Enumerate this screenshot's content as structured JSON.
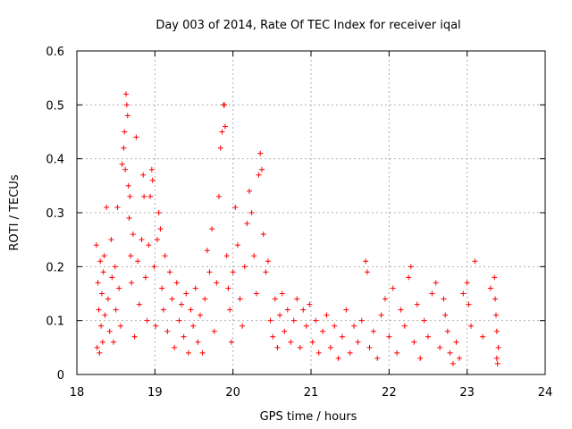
{
  "chart_data": {
    "type": "scatter",
    "title": "Day 003 of 2014, Rate Of TEC Index for receiver iqal",
    "xlabel": "GPS time / hours",
    "ylabel": "ROTI / TECUs",
    "xlim": [
      18,
      24
    ],
    "ylim": [
      0,
      0.6
    ],
    "x_ticks": [
      18,
      19,
      20,
      21,
      22,
      23,
      24
    ],
    "x_tick_labels": [
      "18",
      "19",
      "20",
      "21",
      "22",
      "23",
      "24"
    ],
    "y_ticks": [
      0,
      0.1,
      0.2,
      0.3,
      0.4,
      0.5,
      0.6
    ],
    "y_tick_labels": [
      "0",
      "0.1",
      "0.2",
      "0.3",
      "0.4",
      "0.5",
      "0.6"
    ],
    "grid": true,
    "marker": "plus",
    "color": "#ff0000",
    "series": [
      {
        "name": "ROTI",
        "points": [
          [
            18.25,
            0.24
          ],
          [
            18.26,
            0.05
          ],
          [
            18.27,
            0.17
          ],
          [
            18.28,
            0.12
          ],
          [
            18.29,
            0.04
          ],
          [
            18.3,
            0.21
          ],
          [
            18.31,
            0.09
          ],
          [
            18.32,
            0.15
          ],
          [
            18.33,
            0.06
          ],
          [
            18.34,
            0.19
          ],
          [
            18.35,
            0.22
          ],
          [
            18.36,
            0.11
          ],
          [
            18.38,
            0.31
          ],
          [
            18.4,
            0.14
          ],
          [
            18.42,
            0.08
          ],
          [
            18.44,
            0.25
          ],
          [
            18.45,
            0.18
          ],
          [
            18.47,
            0.06
          ],
          [
            18.49,
            0.2
          ],
          [
            18.5,
            0.12
          ],
          [
            18.52,
            0.31
          ],
          [
            18.54,
            0.16
          ],
          [
            18.56,
            0.09
          ],
          [
            18.58,
            0.39
          ],
          [
            18.6,
            0.42
          ],
          [
            18.61,
            0.45
          ],
          [
            18.62,
            0.38
          ],
          [
            18.63,
            0.52
          ],
          [
            18.64,
            0.5
          ],
          [
            18.65,
            0.48
          ],
          [
            18.66,
            0.35
          ],
          [
            18.67,
            0.29
          ],
          [
            18.68,
            0.33
          ],
          [
            18.69,
            0.22
          ],
          [
            18.7,
            0.17
          ],
          [
            18.72,
            0.26
          ],
          [
            18.74,
            0.07
          ],
          [
            18.76,
            0.44
          ],
          [
            18.78,
            0.21
          ],
          [
            18.8,
            0.13
          ],
          [
            18.83,
            0.25
          ],
          [
            18.85,
            0.37
          ],
          [
            18.86,
            0.33
          ],
          [
            18.88,
            0.18
          ],
          [
            18.9,
            0.1
          ],
          [
            18.92,
            0.24
          ],
          [
            18.94,
            0.33
          ],
          [
            18.96,
            0.38
          ],
          [
            18.97,
            0.36
          ],
          [
            18.99,
            0.2
          ],
          [
            19.01,
            0.09
          ],
          [
            19.03,
            0.25
          ],
          [
            19.05,
            0.3
          ],
          [
            19.07,
            0.27
          ],
          [
            19.09,
            0.16
          ],
          [
            19.11,
            0.12
          ],
          [
            19.13,
            0.22
          ],
          [
            19.16,
            0.08
          ],
          [
            19.19,
            0.19
          ],
          [
            19.22,
            0.14
          ],
          [
            19.25,
            0.05
          ],
          [
            19.28,
            0.17
          ],
          [
            19.31,
            0.1
          ],
          [
            19.34,
            0.13
          ],
          [
            19.37,
            0.07
          ],
          [
            19.4,
            0.15
          ],
          [
            19.43,
            0.04
          ],
          [
            19.46,
            0.12
          ],
          [
            19.49,
            0.09
          ],
          [
            19.52,
            0.16
          ],
          [
            19.55,
            0.06
          ],
          [
            19.58,
            0.11
          ],
          [
            19.61,
            0.04
          ],
          [
            19.64,
            0.14
          ],
          [
            19.67,
            0.23
          ],
          [
            19.7,
            0.19
          ],
          [
            19.73,
            0.27
          ],
          [
            19.76,
            0.08
          ],
          [
            19.79,
            0.17
          ],
          [
            19.82,
            0.33
          ],
          [
            19.84,
            0.42
          ],
          [
            19.86,
            0.45
          ],
          [
            19.88,
            0.5
          ],
          [
            19.89,
            0.5
          ],
          [
            19.9,
            0.46
          ],
          [
            19.92,
            0.22
          ],
          [
            19.94,
            0.16
          ],
          [
            19.96,
            0.12
          ],
          [
            19.98,
            0.06
          ],
          [
            20.0,
            0.19
          ],
          [
            20.03,
            0.31
          ],
          [
            20.06,
            0.24
          ],
          [
            20.09,
            0.14
          ],
          [
            20.12,
            0.09
          ],
          [
            20.15,
            0.2
          ],
          [
            20.18,
            0.28
          ],
          [
            20.21,
            0.34
          ],
          [
            20.24,
            0.3
          ],
          [
            20.27,
            0.22
          ],
          [
            20.3,
            0.15
          ],
          [
            20.33,
            0.37
          ],
          [
            20.35,
            0.41
          ],
          [
            20.37,
            0.38
          ],
          [
            20.39,
            0.26
          ],
          [
            20.42,
            0.19
          ],
          [
            20.45,
            0.21
          ],
          [
            20.48,
            0.1
          ],
          [
            20.51,
            0.07
          ],
          [
            20.54,
            0.14
          ],
          [
            20.57,
            0.05
          ],
          [
            20.6,
            0.11
          ],
          [
            20.63,
            0.15
          ],
          [
            20.66,
            0.08
          ],
          [
            20.7,
            0.12
          ],
          [
            20.74,
            0.06
          ],
          [
            20.78,
            0.1
          ],
          [
            20.82,
            0.14
          ],
          [
            20.86,
            0.05
          ],
          [
            20.9,
            0.12
          ],
          [
            20.94,
            0.09
          ],
          [
            20.98,
            0.13
          ],
          [
            21.02,
            0.06
          ],
          [
            21.06,
            0.1
          ],
          [
            21.1,
            0.04
          ],
          [
            21.15,
            0.08
          ],
          [
            21.2,
            0.11
          ],
          [
            21.25,
            0.05
          ],
          [
            21.3,
            0.09
          ],
          [
            21.35,
            0.03
          ],
          [
            21.4,
            0.07
          ],
          [
            21.45,
            0.12
          ],
          [
            21.5,
            0.04
          ],
          [
            21.55,
            0.09
          ],
          [
            21.6,
            0.06
          ],
          [
            21.65,
            0.1
          ],
          [
            21.7,
            0.21
          ],
          [
            21.72,
            0.19
          ],
          [
            21.75,
            0.05
          ],
          [
            21.8,
            0.08
          ],
          [
            21.85,
            0.03
          ],
          [
            21.9,
            0.11
          ],
          [
            21.95,
            0.14
          ],
          [
            22.0,
            0.07
          ],
          [
            22.05,
            0.16
          ],
          [
            22.1,
            0.04
          ],
          [
            22.15,
            0.12
          ],
          [
            22.2,
            0.09
          ],
          [
            22.25,
            0.18
          ],
          [
            22.28,
            0.2
          ],
          [
            22.32,
            0.06
          ],
          [
            22.36,
            0.13
          ],
          [
            22.4,
            0.03
          ],
          [
            22.45,
            0.1
          ],
          [
            22.5,
            0.07
          ],
          [
            22.55,
            0.15
          ],
          [
            22.6,
            0.17
          ],
          [
            22.65,
            0.05
          ],
          [
            22.7,
            0.14
          ],
          [
            22.72,
            0.11
          ],
          [
            22.75,
            0.08
          ],
          [
            22.78,
            0.04
          ],
          [
            22.82,
            0.02
          ],
          [
            22.86,
            0.06
          ],
          [
            22.9,
            0.03
          ],
          [
            22.95,
            0.15
          ],
          [
            23.0,
            0.17
          ],
          [
            23.02,
            0.13
          ],
          [
            23.05,
            0.09
          ],
          [
            23.1,
            0.21
          ],
          [
            23.2,
            0.07
          ],
          [
            23.3,
            0.16
          ],
          [
            23.35,
            0.18
          ],
          [
            23.36,
            0.14
          ],
          [
            23.37,
            0.11
          ],
          [
            23.38,
            0.08
          ],
          [
            23.38,
            0.03
          ],
          [
            23.39,
            0.02
          ],
          [
            23.4,
            0.05
          ]
        ]
      }
    ]
  }
}
